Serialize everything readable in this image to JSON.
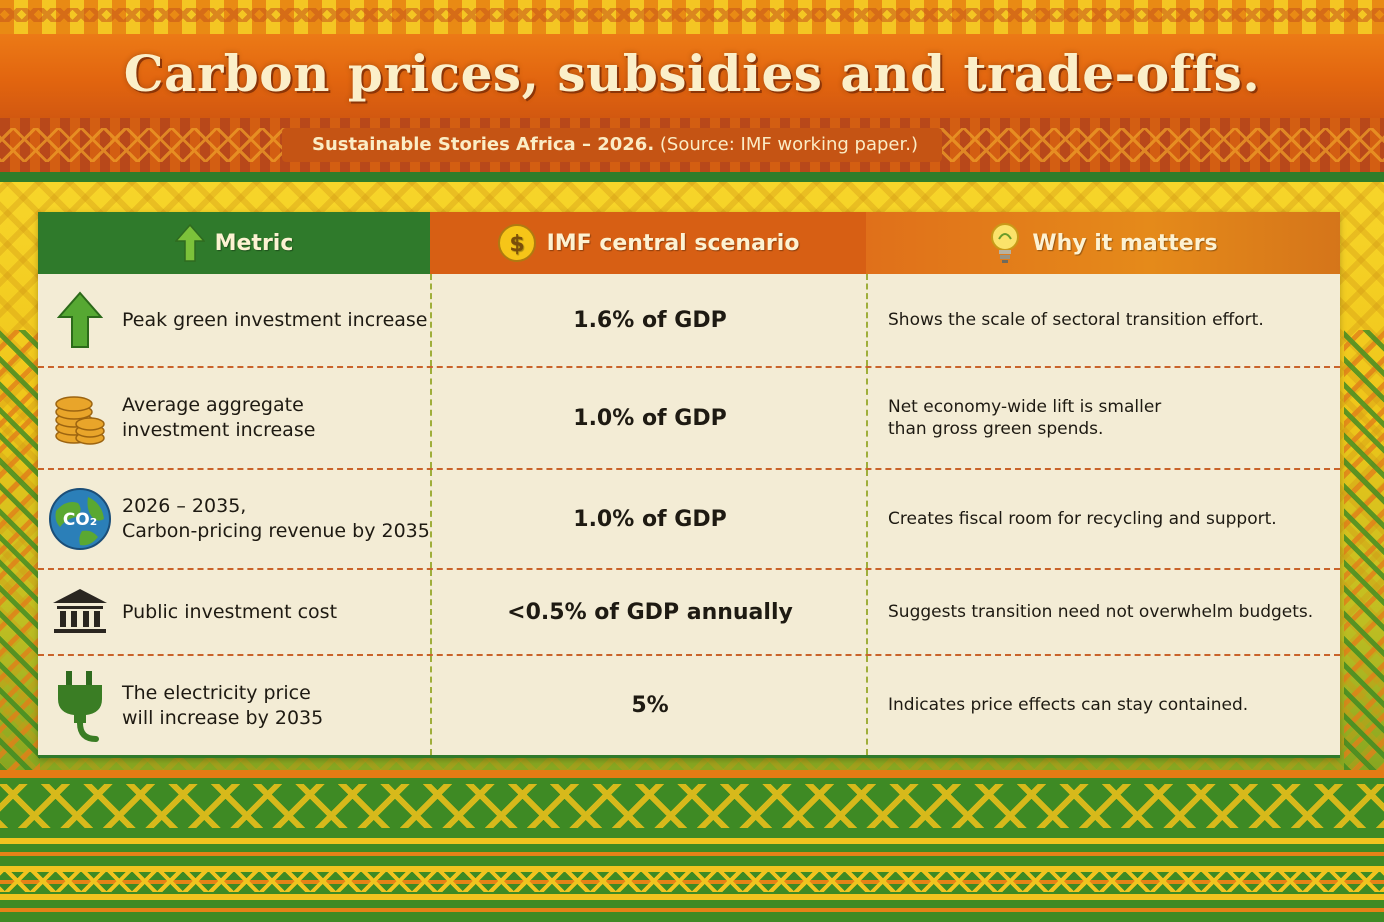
{
  "header": {
    "title": "Carbon prices, subsidies and trade-offs.",
    "subtitle_bold": "Sustainable Stories Africa – 2026.",
    "subtitle_rest": " (Source: IMF working paper.)"
  },
  "table": {
    "columns": [
      {
        "label": "Metric",
        "icon": "up-arrow-icon"
      },
      {
        "label": "IMF central scenario",
        "icon": "dollar-coin-icon"
      },
      {
        "label": "Why it matters",
        "icon": "lightbulb-icon"
      }
    ],
    "rows": [
      {
        "icon": "green-arrow-up-icon",
        "metric": "Peak green investment increase",
        "value": "1.6% of GDP",
        "why": "Shows the scale of sectoral transition effort."
      },
      {
        "icon": "coin-stack-icon",
        "metric": "Average aggregate\ninvestment increase",
        "value": "1.0% of GDP",
        "why": "Net economy-wide lift is smaller\nthan gross green spends."
      },
      {
        "icon": "co2-globe-icon",
        "metric": "2026 – 2035,\nCarbon-pricing revenue by 2035",
        "value": "1.0% of GDP",
        "why": "Creates fiscal room for recycling and support."
      },
      {
        "icon": "bank-building-icon",
        "metric": "Public investment cost",
        "value": "<0.5% of GDP annually",
        "why": "Suggests transition need not overwhelm budgets."
      },
      {
        "icon": "electric-plug-icon",
        "metric": "The electricity price\nwill increase by 2035",
        "value": "5%",
        "why": "Indicates price effects can stay contained."
      }
    ]
  },
  "icon_labels": {
    "co2": "CO₂"
  },
  "colors": {
    "green": "#2f7a2b",
    "orange": "#d75f14",
    "cream": "#f3ecd5"
  }
}
